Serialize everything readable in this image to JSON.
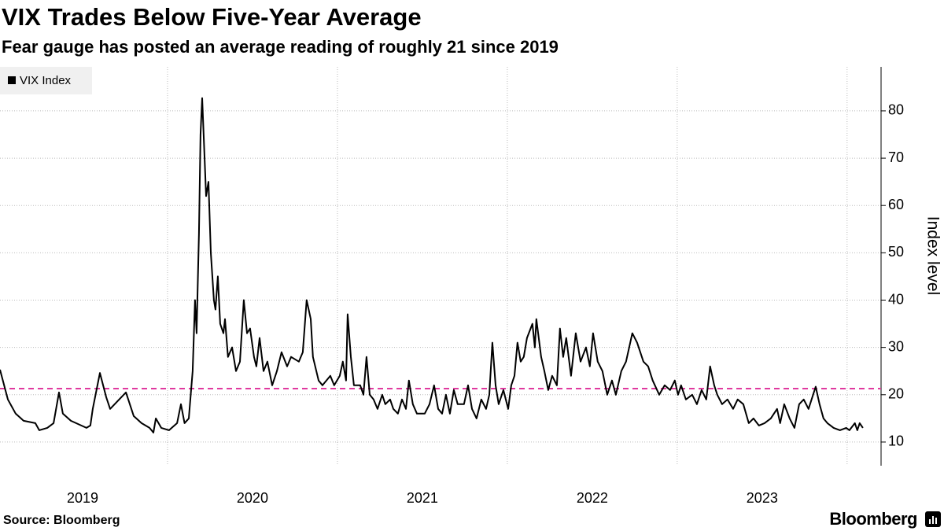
{
  "chart_data": {
    "type": "line",
    "title": "VIX Trades Below Five-Year Average",
    "subtitle": "Fear gauge has posted an average reading of roughly 21 since 2019",
    "y_axis_label": "Index level",
    "source": "Source: Bloomberg",
    "brand": "Bloomberg",
    "xlim": [
      2019,
      2024.2
    ],
    "xticks": [
      2020,
      2021,
      2022,
      2023,
      2024
    ],
    "x_labels": [
      2019,
      2020,
      2021,
      2022,
      2023
    ],
    "ylim": [
      5,
      89.3
    ],
    "yticks": [
      10,
      20,
      30,
      40,
      50,
      60,
      70,
      80
    ],
    "grid": true,
    "legend": "top-left",
    "reference_line": {
      "value": 21.3,
      "color": "#e0399f"
    },
    "series": [
      {
        "name": "VIX Index",
        "color": "#000000",
        "x": [
          2019.014,
          2019.06,
          2019.106,
          2019.153,
          2019.222,
          2019.245,
          2019.292,
          2019.329,
          2019.361,
          2019.384,
          2019.431,
          2019.523,
          2019.546,
          2019.56,
          2019.602,
          2019.639,
          2019.662,
          2019.755,
          2019.801,
          2019.847,
          2019.894,
          2019.917,
          2019.931,
          2019.963,
          2020.009,
          2020.056,
          2020.079,
          2020.1,
          2020.125,
          2020.148,
          2020.162,
          2020.171,
          2020.185,
          2020.194,
          2020.204,
          2020.227,
          2020.241,
          2020.255,
          2020.273,
          2020.282,
          2020.296,
          2020.31,
          2020.329,
          2020.338,
          2020.356,
          2020.38,
          2020.403,
          2020.426,
          2020.449,
          2020.468,
          2020.486,
          2020.509,
          2020.523,
          2020.542,
          2020.565,
          2020.588,
          2020.616,
          2020.644,
          2020.671,
          2020.704,
          2020.727,
          2020.773,
          2020.796,
          2020.819,
          2020.843,
          2020.856,
          2020.889,
          2020.912,
          2020.958,
          2020.981,
          2021.014,
          2021.032,
          2021.051,
          2021.06,
          2021.079,
          2021.097,
          2021.134,
          2021.153,
          2021.171,
          2021.19,
          2021.213,
          2021.236,
          2021.264,
          2021.282,
          2021.31,
          2021.329,
          2021.356,
          2021.38,
          2021.403,
          2021.421,
          2021.444,
          2021.468,
          2021.514,
          2021.542,
          2021.569,
          2021.593,
          2021.616,
          2021.639,
          2021.662,
          2021.685,
          2021.708,
          2021.745,
          2021.769,
          2021.792,
          2021.819,
          2021.847,
          2021.875,
          2021.894,
          2021.912,
          2021.931,
          2021.949,
          2021.977,
          2022.005,
          2022.023,
          2022.042,
          2022.06,
          2022.079,
          2022.097,
          2022.116,
          2022.148,
          2022.162,
          2022.171,
          2022.199,
          2022.218,
          2022.241,
          2022.264,
          2022.292,
          2022.31,
          2022.329,
          2022.347,
          2022.375,
          2022.403,
          2022.431,
          2022.463,
          2022.486,
          2022.505,
          2022.532,
          2022.56,
          2022.588,
          2022.616,
          2022.639,
          2022.671,
          2022.699,
          2022.736,
          2022.764,
          2022.801,
          2022.829,
          2022.856,
          2022.894,
          2022.926,
          2022.958,
          2022.986,
          2023.005,
          2023.023,
          2023.051,
          2023.088,
          2023.116,
          2023.144,
          2023.171,
          2023.194,
          2023.218,
          2023.236,
          2023.264,
          2023.296,
          2023.329,
          2023.356,
          2023.389,
          2023.421,
          2023.449,
          2023.481,
          2023.514,
          2023.551,
          2023.588,
          2023.606,
          2023.63,
          2023.662,
          2023.69,
          2023.718,
          2023.745,
          2023.773,
          2023.815,
          2023.838,
          2023.861,
          2023.884,
          2023.921,
          2023.958,
          2023.995,
          2024.014,
          2024.046,
          2024.06,
          2024.074,
          2024.093
        ],
        "values": [
          25.3,
          19,
          16,
          14.5,
          14,
          12.5,
          13,
          14,
          20.5,
          16,
          14.5,
          13,
          13.5,
          17,
          24.6,
          19.5,
          17,
          20.5,
          15.5,
          14,
          13,
          12,
          15,
          13,
          12.5,
          14,
          18,
          14,
          15,
          25,
          40,
          33,
          54,
          75,
          82.7,
          62,
          65,
          50,
          40,
          38,
          45,
          35,
          33,
          36,
          28,
          30,
          25,
          27,
          40,
          33,
          34,
          28,
          26,
          32,
          25,
          27,
          22,
          25,
          29,
          26,
          28,
          27,
          29,
          40,
          36,
          28,
          23,
          22,
          24,
          22,
          24,
          27,
          23,
          37,
          28,
          22,
          22,
          20,
          28,
          20,
          19,
          17,
          20,
          18,
          19,
          17,
          16,
          19,
          17,
          23,
          18,
          16,
          16,
          18,
          22,
          17,
          16,
          20,
          16,
          21,
          18,
          18,
          22,
          17,
          15,
          19,
          17,
          20,
          31,
          22,
          18,
          21,
          17,
          22,
          24,
          31,
          27,
          28,
          32,
          35,
          30,
          36,
          28,
          25,
          21,
          24,
          22,
          34,
          28,
          32,
          24,
          33,
          27,
          30,
          26,
          33,
          27,
          25,
          20,
          23,
          20,
          25,
          27,
          33,
          31,
          27,
          26,
          23,
          20,
          22,
          21,
          23,
          20,
          22,
          19,
          20,
          18,
          21,
          19,
          26,
          22,
          20,
          18,
          19,
          17,
          19,
          18,
          14,
          15,
          13.5,
          14,
          15,
          17,
          14,
          18,
          15,
          13,
          18,
          19,
          17,
          21.7,
          18,
          15,
          14,
          13,
          12.5,
          13,
          12.5,
          14,
          12.5,
          14,
          13
        ]
      }
    ]
  }
}
